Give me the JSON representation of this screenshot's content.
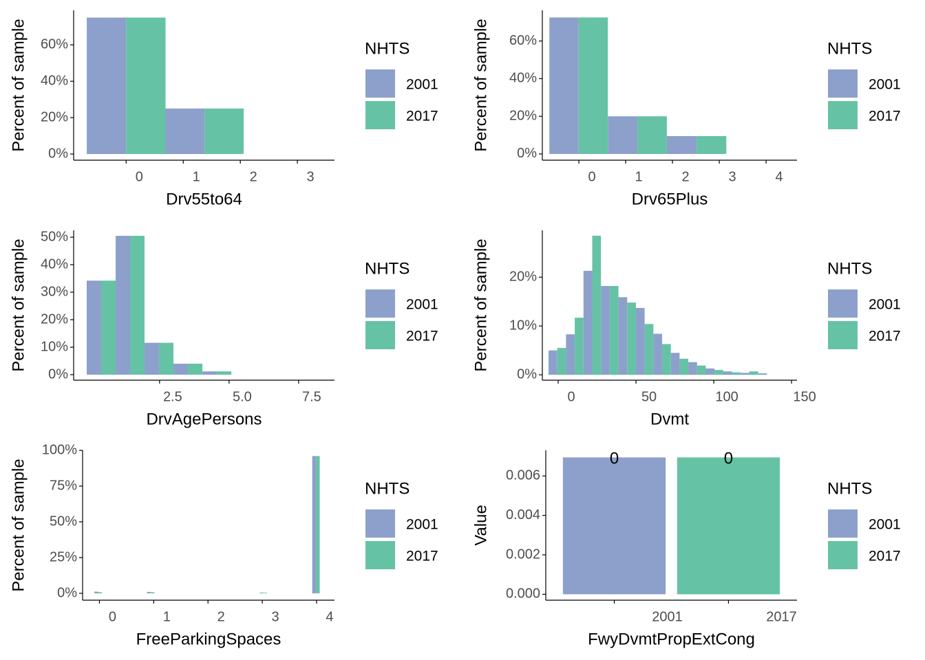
{
  "chart_data": [
    {
      "type": "histogram",
      "xlabel": "Drv55to64",
      "ylabel": "Percent of sample",
      "legend_title": "NHTS",
      "bins": [
        -0.69,
        0.69,
        2.06
      ],
      "series": [
        {
          "name": "2001",
          "color": "#8DA0CB",
          "values": [
            75,
            25
          ]
        },
        {
          "name": "2017",
          "color": "#66C2A5",
          "values": [
            75,
            25
          ]
        }
      ],
      "xlim": [
        -0.92,
        3.65
      ],
      "xticks": [
        0,
        1,
        2,
        3
      ],
      "ylim": [
        -3.4,
        79
      ],
      "yticks": [
        {
          "value": 0,
          "label": "0%"
        },
        {
          "value": 20,
          "label": "20%"
        },
        {
          "value": 40,
          "label": "40%"
        },
        {
          "value": 60,
          "label": "60%"
        }
      ]
    },
    {
      "type": "histogram",
      "xlabel": "Drv65Plus",
      "ylabel": "Percent of sample",
      "legend_title": "NHTS",
      "bins": [
        -0.63,
        0.62,
        1.88,
        3.15
      ],
      "series": [
        {
          "name": "2001",
          "color": "#8DA0CB",
          "values": [
            72.5,
            20,
            9.5
          ]
        },
        {
          "name": "2017",
          "color": "#66C2A5",
          "values": [
            72.5,
            20,
            9.5
          ]
        }
      ],
      "xlim": [
        -0.78,
        4.66
      ],
      "xticks": [
        0,
        1,
        2,
        3,
        4
      ],
      "ylim": [
        -3.3,
        76.3
      ],
      "yticks": [
        {
          "value": 0,
          "label": "0%"
        },
        {
          "value": 20,
          "label": "20%"
        },
        {
          "value": 40,
          "label": "40%"
        },
        {
          "value": 60,
          "label": "60%"
        }
      ]
    },
    {
      "type": "histogram",
      "xlabel": "DrvAgePersons",
      "ylabel": "Percent of sample",
      "legend_title": "NHTS",
      "bins": [
        -0.12,
        0.92,
        1.96,
        3.0,
        4.04,
        5.08
      ],
      "series": [
        {
          "name": "2001",
          "color": "#8DA0CB",
          "values": [
            34.2,
            50.5,
            11.6,
            4,
            1.2
          ]
        },
        {
          "name": "2017",
          "color": "#66C2A5",
          "values": [
            34.2,
            50.5,
            11.6,
            4,
            1.2
          ]
        }
      ],
      "xlim": [
        -0.59,
        8.79
      ],
      "xticks": [
        2.5,
        {
          "value": 5,
          "label": "5.0"
        },
        7.5
      ],
      "ylim": [
        -2,
        52.5
      ],
      "yticks": [
        {
          "value": 0,
          "label": "0%"
        },
        {
          "value": 10,
          "label": "10%"
        },
        {
          "value": 20,
          "label": "20%"
        },
        {
          "value": 30,
          "label": "30%"
        },
        {
          "value": 40,
          "label": "40%"
        },
        {
          "value": 50,
          "label": "50%"
        }
      ]
    },
    {
      "type": "histogram",
      "xlabel": "Dvmt",
      "ylabel": "Percent of sample",
      "legend_title": "NHTS",
      "bins": [
        -6.2,
        5.03,
        16.26,
        27.49,
        38.72,
        49.95,
        61.18,
        72.41,
        83.64,
        94.87,
        106.1,
        117.33,
        128.56,
        139.79
      ],
      "series": [
        {
          "name": "2001",
          "color": "#8DA0CB",
          "values": [
            5.0,
            8.3,
            21.3,
            18.2,
            15.9,
            13.7,
            8.4,
            4.5,
            2.6,
            1.3,
            0.7,
            0.4,
            0.3
          ]
        },
        {
          "name": "2017",
          "color": "#66C2A5",
          "values": [
            5.5,
            11.7,
            28.5,
            18.2,
            14.8,
            10.4,
            6.3,
            3.3,
            1.9,
            1.0,
            0.5,
            0.7,
            0
          ]
        }
      ],
      "xlim": [
        -10.2,
        153.5
      ],
      "xticks": [
        0,
        50,
        100,
        150
      ],
      "ylim": [
        -1.1,
        29.6
      ],
      "yticks": [
        {
          "value": 0,
          "label": "0%"
        },
        {
          "value": 10,
          "label": "10%"
        },
        {
          "value": 20,
          "label": "20%"
        }
      ]
    },
    {
      "type": "histogram",
      "xlabel": "FreeParkingSpaces",
      "ylabel": "Percent of sample",
      "legend_title": "NHTS",
      "bins": [
        -0.094,
        0.044,
        0.183,
        0.321,
        0.46,
        0.598,
        0.736,
        0.875,
        1.013,
        1.152,
        1.29,
        1.428,
        1.567,
        1.705,
        1.844,
        1.982,
        2.12,
        2.259,
        2.397,
        2.536,
        2.674,
        2.812,
        2.951,
        3.089,
        3.228,
        3.366,
        3.504,
        3.643,
        3.781,
        3.92,
        4.058
      ],
      "series": [
        {
          "name": "2001",
          "color": "#8DA0CB",
          "values": [
            1.2,
            0,
            0,
            0,
            0,
            0,
            0,
            1.0,
            0,
            0,
            0,
            0,
            0,
            0,
            0,
            0,
            0,
            0,
            0,
            0,
            0,
            0,
            0.5,
            0,
            0,
            0,
            0,
            0,
            0,
            96
          ]
        },
        {
          "name": "2017",
          "color": "#66C2A5",
          "values": [
            0.8,
            0,
            0,
            0,
            0,
            0,
            0,
            0.8,
            0,
            0,
            0,
            0,
            0,
            0,
            0,
            0,
            0,
            0,
            0,
            0,
            0,
            0,
            0.4,
            0,
            0,
            0,
            0,
            0,
            0,
            96
          ]
        }
      ],
      "xlim": [
        -0.31,
        4.33
      ],
      "xticks": [
        0,
        1,
        2,
        3,
        4
      ],
      "ylim": [
        -4.8,
        100
      ],
      "yticks": [
        {
          "value": 0,
          "label": "0%"
        },
        {
          "value": 25,
          "label": "25%"
        },
        {
          "value": 50,
          "label": "50%"
        },
        {
          "value": 75,
          "label": "75%"
        },
        {
          "value": 100,
          "label": "100%"
        }
      ]
    },
    {
      "type": "bar",
      "xlabel": "FwyDvmtPropExtCong",
      "ylabel": "Value",
      "legend_title": "NHTS",
      "categories": [
        "2001",
        "2017"
      ],
      "values": [
        0.00694,
        0.00694
      ],
      "value_labels": [
        "0",
        "0"
      ],
      "colors": [
        "#8DA0CB",
        "#66C2A5"
      ],
      "ylim": [
        -0.0003,
        0.0073
      ],
      "yticks": [
        {
          "value": 0,
          "label": "0.000"
        },
        {
          "value": 0.002,
          "label": "0.002"
        },
        {
          "value": 0.004,
          "label": "0.004"
        },
        {
          "value": 0.006,
          "label": "0.006"
        }
      ]
    }
  ]
}
